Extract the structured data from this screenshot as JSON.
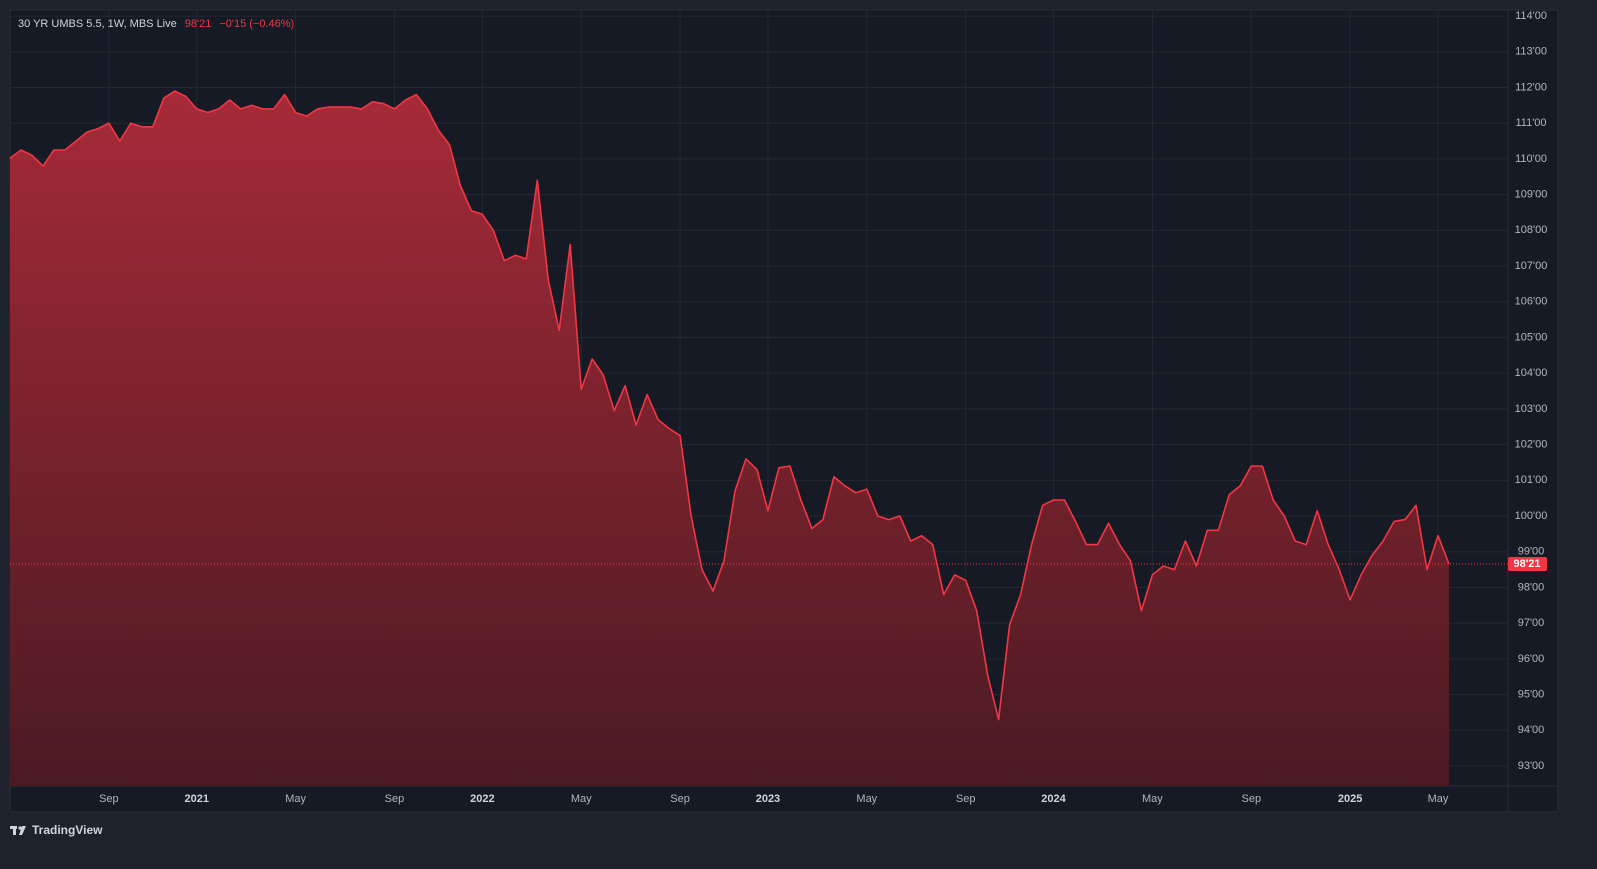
{
  "chart_data": {
    "type": "area",
    "title": "30 YR UMBS 5.5, 1W, MBS Live",
    "last_price": {
      "value": 98.65625,
      "label": "98'21"
    },
    "change_label": "−0'15 (−0.46%)",
    "categories": [
      null,
      null,
      null,
      null,
      null,
      null,
      null,
      null,
      null,
      "Sep",
      null,
      null,
      null,
      null,
      null,
      null,
      null,
      "2021",
      null,
      null,
      null,
      null,
      null,
      null,
      null,
      null,
      "May",
      null,
      null,
      null,
      null,
      null,
      null,
      null,
      null,
      "Sep",
      null,
      null,
      null,
      null,
      null,
      null,
      null,
      "2022",
      null,
      null,
      null,
      null,
      null,
      null,
      null,
      null,
      "May",
      null,
      null,
      null,
      null,
      null,
      null,
      null,
      null,
      "Sep",
      null,
      null,
      null,
      null,
      null,
      null,
      null,
      "2023",
      null,
      null,
      null,
      null,
      null,
      null,
      null,
      null,
      "May",
      null,
      null,
      null,
      null,
      null,
      null,
      null,
      null,
      "Sep",
      null,
      null,
      null,
      null,
      null,
      null,
      null,
      "2024",
      null,
      null,
      null,
      null,
      null,
      null,
      null,
      null,
      "May",
      null,
      null,
      null,
      null,
      null,
      null,
      null,
      null,
      "Sep",
      null,
      null,
      null,
      null,
      null,
      null,
      null,
      null,
      "2025",
      null,
      null,
      null,
      null,
      null,
      null,
      null,
      "May",
      null
    ],
    "series": [
      {
        "color": "#f23645",
        "values": [
          110.02,
          110.25,
          110.1,
          109.8,
          110.25,
          110.25,
          110.5,
          110.75,
          110.85,
          111.0,
          110.5,
          111.0,
          110.9,
          110.9,
          111.7,
          111.9,
          111.75,
          111.4,
          111.3,
          111.4,
          111.65,
          111.4,
          111.5,
          111.4,
          111.4,
          111.8,
          111.3,
          111.2,
          111.4,
          111.45,
          111.45,
          111.45,
          111.4,
          111.6,
          111.55,
          111.4,
          111.65,
          111.8,
          111.4,
          110.8,
          110.4,
          109.25,
          108.55,
          108.45,
          108.0,
          107.15,
          107.3,
          107.2,
          109.4,
          106.6,
          105.2,
          107.6,
          103.55,
          104.4,
          103.95,
          102.95,
          103.65,
          102.55,
          103.4,
          102.7,
          102.45,
          102.25,
          100.0,
          98.5,
          97.9,
          98.75,
          100.7,
          101.6,
          101.3,
          100.15,
          101.35,
          101.4,
          100.45,
          99.65,
          99.9,
          101.1,
          100.85,
          100.65,
          100.75,
          100.0,
          99.9,
          100.0,
          99.3,
          99.45,
          99.2,
          97.8,
          98.35,
          98.2,
          97.35,
          95.55,
          94.3,
          96.95,
          97.8,
          99.2,
          100.3,
          100.45,
          100.45,
          99.85,
          99.2,
          99.2,
          99.8,
          99.2,
          98.75,
          97.35,
          98.35,
          98.6,
          98.5,
          99.3,
          98.6,
          99.6,
          99.6,
          100.6,
          100.85,
          101.4,
          101.4,
          100.45,
          100.0,
          99.3,
          99.2,
          100.15,
          99.2,
          98.5,
          97.65,
          98.35,
          98.9,
          99.3,
          99.85,
          99.9,
          100.3,
          98.5,
          99.45,
          98.65625
        ]
      }
    ],
    "ylim": [
      92.44,
      114.17
    ],
    "yticks": [
      {
        "value": 93,
        "label": "93'00"
      },
      {
        "value": 94,
        "label": "94'00"
      },
      {
        "value": 95,
        "label": "95'00"
      },
      {
        "value": 96,
        "label": "96'00"
      },
      {
        "value": 97,
        "label": "97'00"
      },
      {
        "value": 98,
        "label": "98'00"
      },
      {
        "value": 99,
        "label": "99'00"
      },
      {
        "value": 100,
        "label": "100'00"
      },
      {
        "value": 101,
        "label": "101'00"
      },
      {
        "value": 102,
        "label": "102'00"
      },
      {
        "value": 103,
        "label": "103'00"
      },
      {
        "value": 104,
        "label": "104'00"
      },
      {
        "value": 105,
        "label": "105'00"
      },
      {
        "value": 106,
        "label": "106'00"
      },
      {
        "value": 107,
        "label": "107'00"
      },
      {
        "value": 108,
        "label": "108'00"
      },
      {
        "value": 109,
        "label": "109'00"
      },
      {
        "value": 110,
        "label": "110'00"
      },
      {
        "value": 111,
        "label": "111'00"
      },
      {
        "value": 112,
        "label": "112'00"
      },
      {
        "value": 113,
        "label": "113'00"
      },
      {
        "value": 114,
        "label": "114'00"
      }
    ],
    "grid": true
  },
  "footer": "TradingView"
}
